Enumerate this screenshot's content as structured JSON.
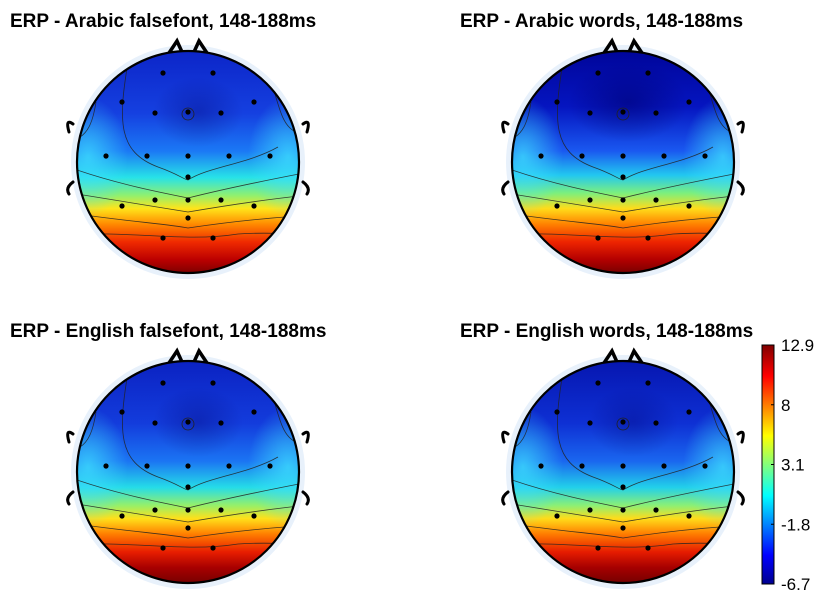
{
  "chart_data": {
    "type": "heatmap",
    "subtype": "topographic-scalp-map",
    "colormap": "jet",
    "colorbar": {
      "min": -6.7,
      "max": 12.9,
      "ticks": [
        12.9,
        8,
        3.1,
        -1.8,
        -6.7
      ],
      "tick_labels": [
        "12.9",
        "8",
        "3.1",
        "-1.8",
        "-6.7"
      ],
      "placement": "right"
    },
    "panels": [
      {
        "title": "ERP - Arabic falsefont, 148-188ms",
        "pattern": "negative frontal/central, positive posterior",
        "approx_range": [
          -5,
          12.9
        ]
      },
      {
        "title": "ERP - Arabic words, 148-188ms",
        "pattern": "strongly negative frontal, positive posterior",
        "approx_range": [
          -6.7,
          12.9
        ]
      },
      {
        "title": "ERP - English falsefont, 148-188ms",
        "pattern": "negative frontal/central, positive posterior",
        "approx_range": [
          -5,
          12.9
        ]
      },
      {
        "title": "ERP - English words, 148-188ms",
        "pattern": "negative frontal/central, positive posterior",
        "approx_range": [
          -6,
          12.9
        ]
      }
    ]
  }
}
